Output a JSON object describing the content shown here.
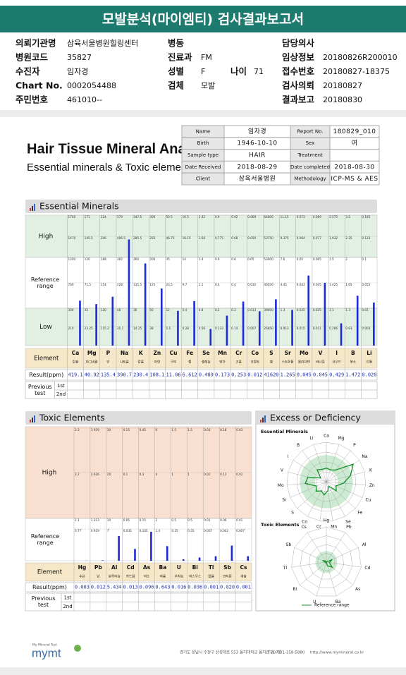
{
  "header": {
    "title": "모발분석(마이엠티) 검사결과보고서"
  },
  "patient_info": [
    {
      "label": "의뢰기관명",
      "value": "삼육서울병원힐링센터"
    },
    {
      "label": "병원코드",
      "value": "35827"
    },
    {
      "label": "수진자",
      "value": "임자경"
    },
    {
      "label": "Chart No.",
      "value": "0002054488"
    },
    {
      "label": "주민번호",
      "value": "461010--"
    },
    {
      "label": "병동"
    },
    {
      "label": "진료과",
      "value": "FM"
    },
    {
      "label": "성별",
      "value": "F"
    },
    {
      "label": "나이",
      "value": "71"
    },
    {
      "label": "검체",
      "value": "모발"
    },
    {
      "label": "담당의사"
    },
    {
      "label": "임상정보",
      "value": "20180826R200010"
    },
    {
      "label": "접수번호",
      "value": "20180827-18375"
    },
    {
      "label": "검사의뢰",
      "value": "20180827"
    },
    {
      "label": "결과보고",
      "value": "20180830"
    }
  ],
  "report": {
    "title": "Hair Tissue Mineral Analysis",
    "subtitle": "Essential minerals & Toxic elements",
    "table": [
      {
        "label": "Name",
        "value": "임자경"
      },
      {
        "label": "Report No.",
        "value": "180829_010"
      },
      {
        "label": "Birth",
        "value": "1946-10-10"
      },
      {
        "label": "Sex",
        "value": "여"
      },
      {
        "label": "Sample type",
        "value": "HAIR"
      },
      {
        "label": "Treatment"
      },
      {
        "label": "Date Received",
        "value": "2018-08-29"
      },
      {
        "label": "Date completed",
        "value": "2018-08-30"
      },
      {
        "label": "Client",
        "value": "삼육서울병원"
      },
      {
        "label": "Methodology",
        "value": "ICP-MS & AES"
      }
    ]
  },
  "essential": {
    "title": "Essential Minerals",
    "row_labels": {
      "high": "High",
      "reference": "Reference range",
      "low": "Low",
      "element": "Element",
      "result": "Result(ppm)",
      "previous": "Previous test",
      "first": "1st",
      "second": "2nd"
    },
    "elements": [
      {
        "symbol": "Ca",
        "name": "칼슘",
        "result": 419.1,
        "scale": [
          1740,
          1470,
          1200,
          700,
          300,
          210
        ]
      },
      {
        "symbol": "Mg",
        "name": "마그네슘",
        "result": 40.92,
        "scale": [
          171,
          145.5,
          120,
          71.5,
          35,
          23.25
        ]
      },
      {
        "symbol": "P",
        "name": "인",
        "result": 135.4,
        "scale": [
          224,
          206,
          188,
          154,
          120,
          115.2
        ]
      },
      {
        "symbol": "Na",
        "name": "나트륨",
        "result": 390.7,
        "scale": [
          579,
          406.5,
          302,
          228,
          48,
          35.1
        ]
      },
      {
        "symbol": "K",
        "name": "칼륨",
        "result": 230.4,
        "scale": [
          347.5,
          285.5,
          260,
          135.5,
          36,
          14.25
        ]
      },
      {
        "symbol": "Zn",
        "name": "아연",
        "result": 108.1,
        "scale": [
          306,
          255,
          200,
          125,
          50,
          38
        ]
      },
      {
        "symbol": "Cu",
        "name": "구리",
        "result": 11.06,
        "scale": [
          50.5,
          46.75,
          35,
          23.5,
          12,
          5.5
        ]
      },
      {
        "symbol": "Fe",
        "name": "철",
        "result": 6.612,
        "scale": [
          16.5,
          16.15,
          14,
          9.7,
          5.4,
          4.28
        ]
      },
      {
        "symbol": "Se",
        "name": "셀레늄",
        "result": 0.489,
        "scale": [
          2.42,
          1.68,
          1.4,
          1.1,
          0.8,
          0.56
        ]
      },
      {
        "symbol": "Mn",
        "name": "망간",
        "result": 0.173,
        "scale": [
          0.9,
          0.775,
          0.6,
          0.4,
          0.2,
          0.133
        ]
      },
      {
        "symbol": "Cr",
        "name": "크롬",
        "result": 0.253,
        "scale": [
          0.92,
          0.68,
          0.6,
          0.4,
          0.2,
          0.14
        ]
      },
      {
        "symbol": "Co",
        "name": "코발트",
        "result": 0.012,
        "scale": [
          0.069,
          0.059,
          0.05,
          0.032,
          0.013,
          0.007
        ]
      },
      {
        "symbol": "S",
        "name": "황",
        "result": 41620,
        "scale": [
          64000,
          53750,
          53000,
          46500,
          39000,
          26850
        ]
      },
      {
        "symbol": "Sr",
        "name": "스트론튬",
        "result": 1.265,
        "scale": [
          11.15,
          9.375,
          7.6,
          4.45,
          1.3,
          0.913
        ]
      },
      {
        "symbol": "Mo",
        "name": "몰리브덴",
        "result": 0.045,
        "scale": [
          0.073,
          0.064,
          0.05,
          0.043,
          0.035,
          0.015
        ]
      },
      {
        "symbol": "V",
        "name": "바나듐",
        "result": 0.045,
        "scale": [
          0.089,
          0.077,
          0.065,
          0.045,
          0.025,
          0.011
        ]
      },
      {
        "symbol": "I",
        "name": "요오드",
        "result": 0.429,
        "scale": [
          2.575,
          1.932,
          1.5,
          1.425,
          1.1,
          0.286
        ]
      },
      {
        "symbol": "B",
        "name": "붕소",
        "result": 1.472,
        "scale": [
          3.5,
          2.25,
          2,
          1.65,
          1.3,
          0.93
        ]
      },
      {
        "symbol": "Li",
        "name": "리튬",
        "result": 0.02,
        "result_label": "0.020",
        "scale": [
          0.185,
          0.123,
          0.1,
          0.055,
          0.01,
          0.003
        ]
      }
    ]
  },
  "toxic": {
    "title": "Toxic Elements",
    "row_labels": {
      "high": "High",
      "reference": "Reference range",
      "element": "Element",
      "result": "Result(ppm)",
      "previous": "Previous test",
      "first": "1st",
      "second": "2nd"
    },
    "elements": [
      {
        "symbol": "Hg",
        "name": "수은",
        "result": 0.003,
        "scale": [
          3.3,
          2.2,
          1.1,
          0.77
        ]
      },
      {
        "symbol": "Pb",
        "name": "납",
        "result": 0.012,
        "scale": [
          3.939,
          2.626,
          1.313,
          0.919
        ]
      },
      {
        "symbol": "Al",
        "name": "알루미늄",
        "result": 5.434,
        "scale": [
          30,
          20,
          10,
          7
        ]
      },
      {
        "symbol": "Cd",
        "name": "카드뮴",
        "result": 0.013,
        "scale": [
          0.15,
          0.1,
          0.05,
          0.035
        ]
      },
      {
        "symbol": "As",
        "name": "비소",
        "result": 0.096,
        "scale": [
          0.45,
          0.3,
          0.15,
          0.105
        ]
      },
      {
        "symbol": "Ba",
        "name": "바륨",
        "result": 0.643,
        "scale": [
          6,
          4,
          2,
          1.4
        ]
      },
      {
        "symbol": "U",
        "name": "우라늄",
        "result": 0.016,
        "scale": [
          1.5,
          1,
          0.5,
          0.35
        ]
      },
      {
        "symbol": "Bi",
        "name": "비스무스",
        "result": 0.036,
        "scale": [
          1.5,
          1,
          0.5,
          0.35
        ]
      },
      {
        "symbol": "Tl",
        "name": "탈륨",
        "result": 0.001,
        "scale": [
          0.03,
          0.02,
          0.01,
          0.007
        ]
      },
      {
        "symbol": "Sb",
        "name": "안티몬",
        "result": 0.02,
        "result_label": "0.020",
        "scale": [
          0.18,
          0.12,
          0.06,
          0.042
        ]
      },
      {
        "symbol": "Cs",
        "name": "세슘",
        "result": 0.001,
        "scale": [
          0.03,
          0.02,
          0.01,
          0.007
        ]
      }
    ]
  },
  "excess": {
    "title": "Excess or Deficiency",
    "essential_label": "Essential Minerals",
    "toxic_label": "Toxic Elements",
    "legend": "Reference range"
  },
  "footer": {
    "tagline": "My Mineral Test",
    "logo": "mymt",
    "address": "경기도 성남시 수정구 산성대로 553 을지대학교 을지관 207호",
    "tel": "TEL. 031-358-5880",
    "url": "http://www.mymineral.co.kr"
  }
}
